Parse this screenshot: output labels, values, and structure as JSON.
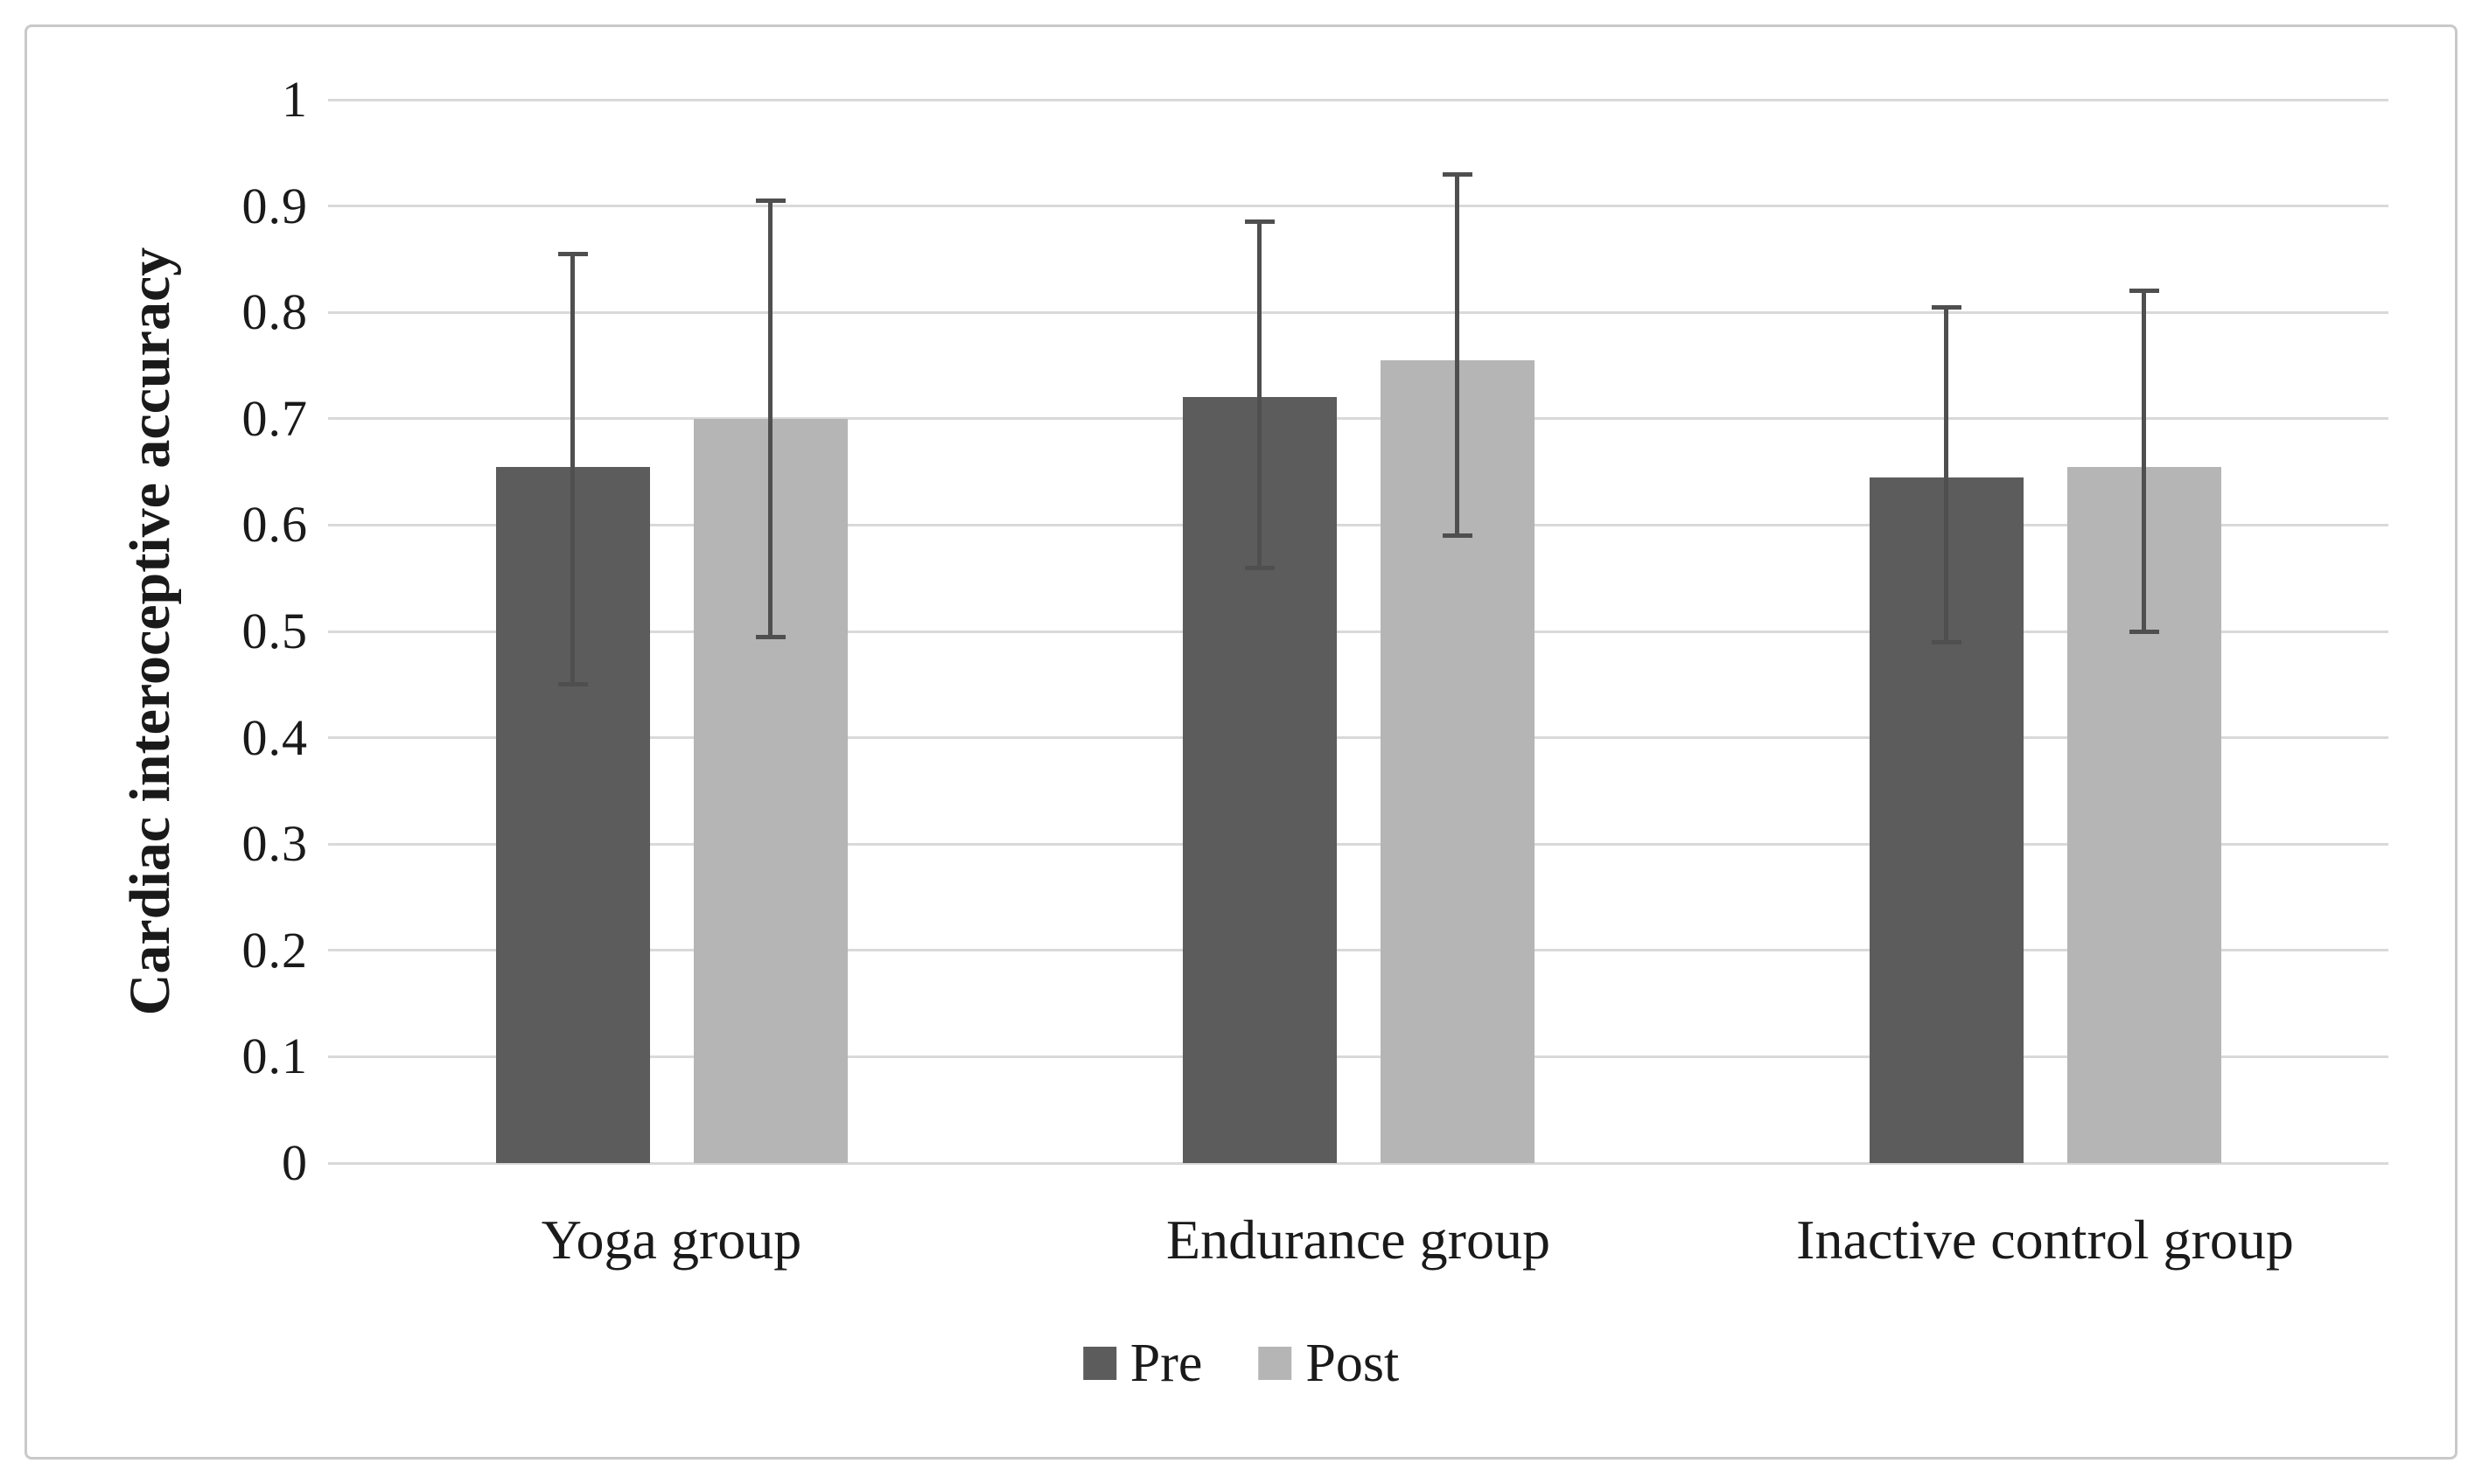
{
  "figure": {
    "kind": "grouped bar chart with error bars",
    "background": "#ffffff",
    "frame_border_color": "#c9c9c9",
    "text_color": "#1a1a1a"
  },
  "chart_data": {
    "type": "bar",
    "title": "",
    "categories": [
      "Yoga group",
      "Endurance group",
      "Inactive control group"
    ],
    "series": [
      {
        "name": "Pre",
        "color": "#5c5c5c",
        "values": [
          0.655,
          0.72,
          0.645
        ],
        "error_upper": [
          0.855,
          0.885,
          0.805
        ],
        "error_lower": [
          0.45,
          0.56,
          0.49
        ]
      },
      {
        "name": "Post",
        "color": "#b5b5b5",
        "values": [
          0.7,
          0.755,
          0.655
        ],
        "error_upper": [
          0.905,
          0.93,
          0.82
        ],
        "error_lower": [
          0.495,
          0.59,
          0.5
        ]
      }
    ],
    "xlabel": "",
    "ylabel": "Cardiac interoceptive accuracy",
    "ylim": [
      0,
      1
    ],
    "ytick_step": 0.1,
    "ytick_labels": [
      "0",
      "0.1",
      "0.2",
      "0.3",
      "0.4",
      "0.5",
      "0.6",
      "0.7",
      "0.8",
      "0.9",
      "1"
    ],
    "grid": "horizontal",
    "gridline_color": "#d9d9d9",
    "axis_line_color": "#d9d9d9",
    "error_bar_color": "#4f4f4f",
    "legend_position": "bottom-center"
  }
}
